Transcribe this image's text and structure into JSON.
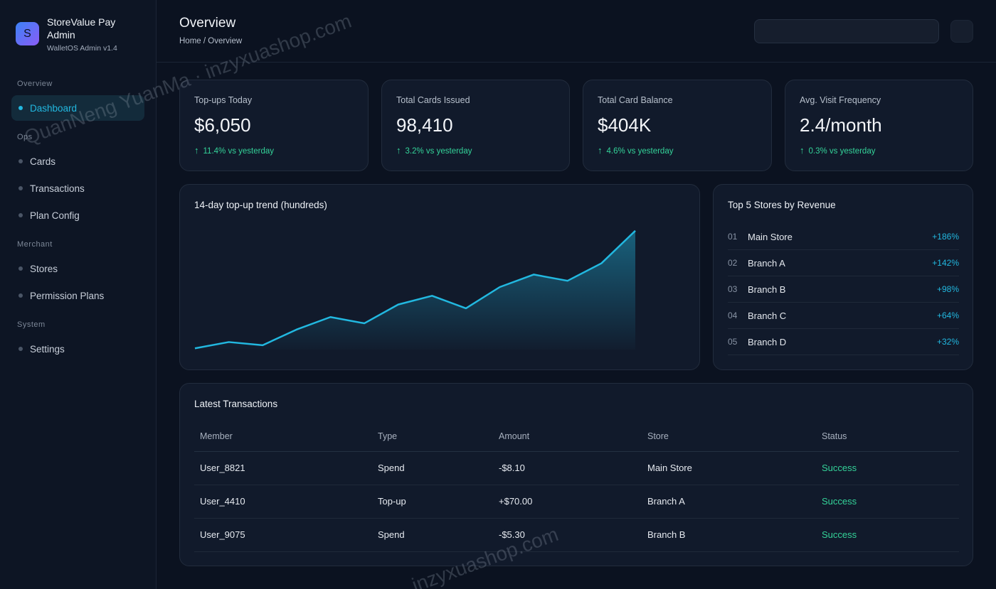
{
  "brand": {
    "logo_letter": "S",
    "name": "StoreValue Pay Admin",
    "subtitle": "WalletOS Admin v1.4"
  },
  "sidebar": {
    "sections": [
      {
        "title": "Overview",
        "items": [
          {
            "label": "Dashboard",
            "active": true
          }
        ]
      },
      {
        "title": "Ops",
        "items": [
          {
            "label": "Cards"
          },
          {
            "label": "Transactions"
          },
          {
            "label": "Plan Config"
          }
        ]
      },
      {
        "title": "Merchant",
        "items": [
          {
            "label": "Stores"
          },
          {
            "label": "Permission Plans"
          }
        ]
      },
      {
        "title": "System",
        "items": [
          {
            "label": "Settings"
          }
        ]
      }
    ]
  },
  "header": {
    "title": "Overview",
    "breadcrumb": "Home / Overview",
    "search_placeholder": ""
  },
  "stats": [
    {
      "label": "Top-ups Today",
      "value": "$6,050",
      "delta": "11.4% vs yesterday"
    },
    {
      "label": "Total Cards Issued",
      "value": "98,410",
      "delta": "3.2% vs yesterday"
    },
    {
      "label": "Total Card Balance",
      "value": "$404K",
      "delta": "4.6% vs yesterday"
    },
    {
      "label": "Avg. Visit Frequency",
      "value": "2.4/month",
      "delta": "0.3% vs yesterday"
    }
  ],
  "trend": {
    "title": "14-day top-up trend (hundreds)"
  },
  "chart_data": {
    "type": "area",
    "title": "14-day top-up trend (hundreds)",
    "x": [
      1,
      2,
      3,
      4,
      5,
      6,
      7,
      8,
      9,
      10,
      11,
      12,
      13,
      14
    ],
    "values": [
      2,
      12,
      7,
      32,
      52,
      42,
      72,
      86,
      66,
      100,
      120,
      110,
      138,
      190
    ],
    "ylim": [
      0,
      200
    ],
    "color": "#22b8e0",
    "grid": false,
    "legend": "none"
  },
  "top_stores": {
    "title": "Top 5 Stores by Revenue",
    "rows": [
      {
        "rank": "01",
        "name": "Main Store",
        "pct": "+186%"
      },
      {
        "rank": "02",
        "name": "Branch A",
        "pct": "+142%"
      },
      {
        "rank": "03",
        "name": "Branch B",
        "pct": "+98%"
      },
      {
        "rank": "04",
        "name": "Branch C",
        "pct": "+64%"
      },
      {
        "rank": "05",
        "name": "Branch D",
        "pct": "+32%"
      }
    ]
  },
  "transactions": {
    "title": "Latest Transactions",
    "columns": [
      "Member",
      "Type",
      "Amount",
      "Store",
      "Status"
    ],
    "rows": [
      [
        "User_8821",
        "Spend",
        "-$8.10",
        "Main Store",
        "Success"
      ],
      [
        "User_4410",
        "Top-up",
        "+$70.00",
        "Branch A",
        "Success"
      ],
      [
        "User_9075",
        "Spend",
        "-$5.30",
        "Branch B",
        "Success"
      ]
    ]
  },
  "watermark": {
    "line1": "QuanNeng YuanMa · inzyxuashop.com",
    "line2": "inzyxuashop.com"
  },
  "colors": {
    "accent": "#22b8e0",
    "positive": "#34d399",
    "background": "#0b1220",
    "card": "#111a2b"
  }
}
